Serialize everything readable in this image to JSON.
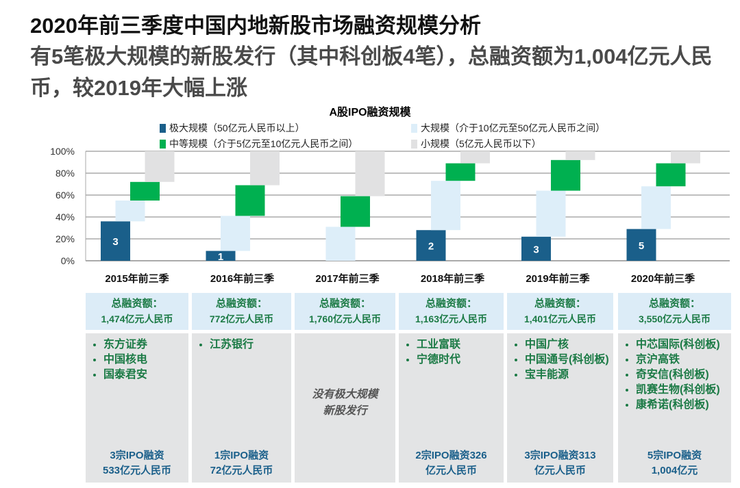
{
  "title": "2020年前三季度中国内地新股市场融资规模分析",
  "subtitle": "有5笔极大规模的新股发行（其中科创板4笔），总融资额为1,004亿元人民币，较2019年大幅上涨",
  "chart_data": {
    "type": "bar",
    "title": "A股IPO融资规模",
    "categories": [
      "2015年前三季",
      "2016年前三季",
      "2017年前三季",
      "2018年前三季",
      "2019年前三季",
      "2020年前三季"
    ],
    "yticks": [
      "0%",
      "20%",
      "40%",
      "60%",
      "80%",
      "100%"
    ],
    "ylim": [
      0,
      100
    ],
    "series": [
      {
        "name": "极大规模（50亿元人民币以上）",
        "color": "#1a5f8a",
        "values": [
          36,
          9,
          0,
          28,
          22,
          29
        ]
      },
      {
        "name": "大规模（介于10亿元至50亿元人民币之间）",
        "color": "#ddeef9",
        "values": [
          19,
          32,
          31,
          45,
          42,
          39
        ]
      },
      {
        "name": "中等规模（介于5亿元至10亿元人民币之间）",
        "color": "#00b050",
        "values": [
          17,
          28,
          28,
          16,
          28,
          21
        ]
      },
      {
        "name": "小规模（5亿元人民币以下）",
        "color": "#e1e1e2",
        "values": [
          28,
          31,
          41,
          11,
          8,
          11
        ]
      }
    ],
    "bar_labels": [
      "3",
      "1",
      "",
      "2",
      "3",
      "5"
    ]
  },
  "panels": [
    {
      "label": "总融资额：",
      "amount": "1,474亿元人民币",
      "items": [
        "东方证券",
        "中国核电",
        "国泰君安"
      ],
      "foot1": "3宗IPO融资",
      "foot2": "533亿元人民币"
    },
    {
      "label": "总融资额：",
      "amount": "772亿元人民币",
      "items": [
        "江苏银行"
      ],
      "foot1": "1宗IPO融资",
      "foot2": "72亿元人民币"
    },
    {
      "label": "总融资额：",
      "amount": "1,760亿元人民币",
      "none1": "没有极大规模",
      "none2": "新股发行"
    },
    {
      "label": "总融资额：",
      "amount": "1,163亿元人民币",
      "items": [
        "工业富联",
        "宁德时代"
      ],
      "foot1": "2宗IPO融资326",
      "foot2": "亿元人民币"
    },
    {
      "label": "总融资额：",
      "amount": "1,401亿元人民币",
      "items": [
        "中国广核",
        "中国通号(科创板)",
        "宝丰能源"
      ],
      "foot1": "3宗IPO融资313",
      "foot2": "亿元人民币"
    },
    {
      "label": "总融资额：",
      "amount": "3,550亿元人民币",
      "items": [
        "中芯国际(科创板)",
        "京沪高铁",
        "奇安信(科创板)",
        "凯赛生物(科创板)",
        "康希诺(科创板)"
      ],
      "foot1": "5宗IPO融资",
      "foot2": "1,004亿元"
    }
  ]
}
